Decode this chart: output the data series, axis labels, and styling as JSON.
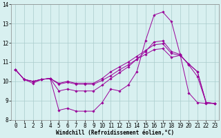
{
  "xlabel": "Windchill (Refroidissement éolien,°C)",
  "background_color": "#d8f0f0",
  "line_color": "#990099",
  "grid_color": "#aacccc",
  "xlim": [
    -0.5,
    23.5
  ],
  "ylim": [
    8,
    14
  ],
  "yticks": [
    8,
    9,
    10,
    11,
    12,
    13,
    14
  ],
  "xticks": [
    0,
    1,
    2,
    3,
    4,
    5,
    6,
    7,
    8,
    9,
    10,
    11,
    12,
    13,
    14,
    15,
    16,
    17,
    18,
    19,
    20,
    21,
    22,
    23
  ],
  "tick_fontsize": 5.5,
  "xlabel_fontsize": 5.5,
  "series": [
    {
      "x": [
        0,
        1,
        2,
        3,
        4,
        5,
        6,
        7,
        8,
        9,
        10,
        11,
        12,
        13,
        14,
        15,
        16,
        17,
        18,
        19,
        20,
        21,
        22,
        23
      ],
      "y": [
        10.6,
        10.1,
        9.9,
        10.1,
        10.15,
        8.5,
        8.6,
        8.45,
        8.45,
        8.45,
        8.9,
        9.6,
        9.5,
        9.8,
        10.5,
        12.1,
        13.45,
        13.6,
        13.1,
        11.4,
        9.4,
        8.9,
        8.85,
        8.85
      ]
    },
    {
      "x": [
        0,
        1,
        2,
        3,
        4,
        5,
        6,
        7,
        8,
        9,
        10,
        11,
        12,
        13,
        14,
        15,
        16,
        17,
        18,
        19,
        20,
        21,
        22,
        23
      ],
      "y": [
        10.6,
        10.1,
        10.0,
        10.1,
        10.15,
        9.85,
        9.95,
        9.85,
        9.85,
        9.85,
        10.05,
        10.3,
        10.6,
        10.85,
        11.15,
        11.4,
        11.65,
        11.7,
        11.25,
        11.35,
        10.9,
        10.5,
        8.9,
        8.85
      ]
    },
    {
      "x": [
        0,
        1,
        2,
        3,
        4,
        5,
        6,
        7,
        8,
        9,
        10,
        11,
        12,
        13,
        14,
        15,
        16,
        17,
        18,
        19,
        20,
        21,
        22,
        23
      ],
      "y": [
        10.6,
        10.1,
        10.0,
        10.1,
        10.15,
        9.9,
        10.0,
        9.9,
        9.9,
        9.9,
        10.15,
        10.5,
        10.75,
        11.0,
        11.3,
        11.6,
        11.9,
        11.95,
        11.45,
        11.35,
        10.9,
        10.5,
        8.9,
        8.85
      ]
    },
    {
      "x": [
        0,
        1,
        2,
        3,
        4,
        5,
        6,
        7,
        8,
        9,
        10,
        11,
        12,
        13,
        14,
        15,
        16,
        17,
        18,
        19,
        20,
        21,
        22,
        23
      ],
      "y": [
        10.6,
        10.1,
        10.0,
        10.1,
        10.15,
        9.5,
        9.6,
        9.5,
        9.5,
        9.5,
        9.8,
        10.15,
        10.45,
        10.75,
        11.15,
        11.55,
        12.05,
        12.1,
        11.55,
        11.4,
        10.85,
        10.25,
        8.9,
        8.85
      ]
    }
  ]
}
